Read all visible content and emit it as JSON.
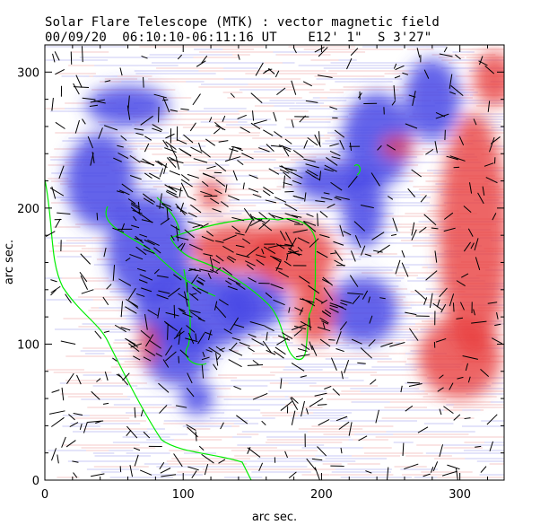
{
  "chart_data": {
    "type": "heatmap",
    "title": "Solar Flare Telescope (MTK) : vector magnetic field",
    "subtitle": "00/09/20  06:10:10-06:11:16 UT    E12' 1\"  S 3'27\"",
    "xlabel": "arc sec.",
    "ylabel": "arc sec.",
    "xlim": [
      0,
      332
    ],
    "ylim": [
      0,
      320
    ],
    "xticks": [
      "0",
      "100",
      "200",
      "300"
    ],
    "yticks": [
      "0",
      "100",
      "200",
      "300"
    ],
    "colors": {
      "positive": "#e03030",
      "negative": "#2020e0",
      "contour": "#00ee00",
      "vector": "#000000"
    },
    "negative_regions": [
      {
        "x": 40,
        "y": 220,
        "rx": 25,
        "ry": 35
      },
      {
        "x": 75,
        "y": 170,
        "rx": 30,
        "ry": 40
      },
      {
        "x": 110,
        "y": 125,
        "rx": 45,
        "ry": 30
      },
      {
        "x": 95,
        "y": 95,
        "rx": 25,
        "ry": 25
      },
      {
        "x": 150,
        "y": 130,
        "rx": 25,
        "ry": 20
      },
      {
        "x": 230,
        "y": 125,
        "rx": 25,
        "ry": 25
      },
      {
        "x": 230,
        "y": 200,
        "rx": 15,
        "ry": 30
      },
      {
        "x": 240,
        "y": 250,
        "rx": 25,
        "ry": 35
      },
      {
        "x": 280,
        "y": 280,
        "rx": 20,
        "ry": 30
      },
      {
        "x": 205,
        "y": 220,
        "rx": 25,
        "ry": 15
      },
      {
        "x": 110,
        "y": 60,
        "rx": 12,
        "ry": 12
      },
      {
        "x": 60,
        "y": 275,
        "rx": 30,
        "ry": 15
      }
    ],
    "positive_regions": [
      {
        "x": 180,
        "y": 165,
        "rx": 30,
        "ry": 25
      },
      {
        "x": 140,
        "y": 170,
        "rx": 35,
        "ry": 18
      },
      {
        "x": 195,
        "y": 125,
        "rx": 15,
        "ry": 25
      },
      {
        "x": 75,
        "y": 100,
        "rx": 7,
        "ry": 15
      },
      {
        "x": 120,
        "y": 210,
        "rx": 8,
        "ry": 12
      },
      {
        "x": 310,
        "y": 180,
        "rx": 25,
        "ry": 90
      },
      {
        "x": 325,
        "y": 295,
        "rx": 15,
        "ry": 20
      },
      {
        "x": 255,
        "y": 245,
        "rx": 12,
        "ry": 8
      },
      {
        "x": 300,
        "y": 90,
        "rx": 30,
        "ry": 30
      }
    ]
  }
}
